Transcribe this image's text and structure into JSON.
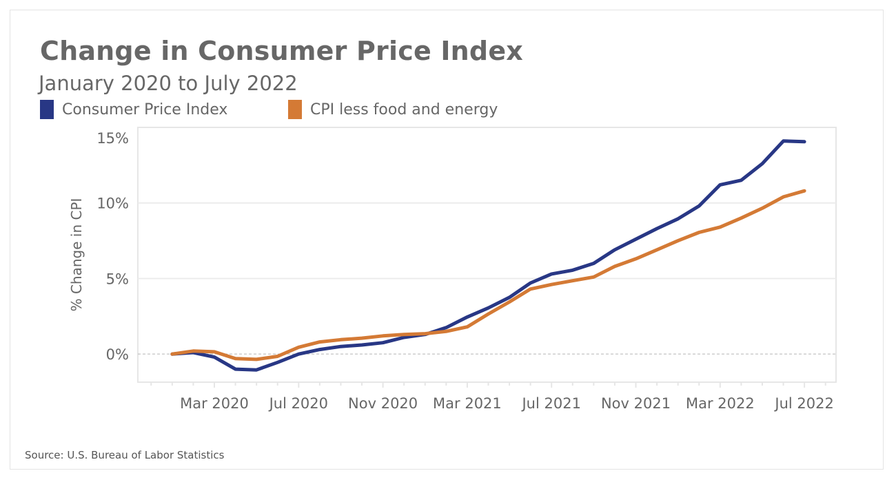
{
  "chart_data": {
    "type": "line",
    "title": "Change in Consumer Price Index",
    "subtitle": "January 2020 to July 2022",
    "ylabel": "% Change in CPI",
    "xlabel": "",
    "ylim": [
      -1.86,
      15
    ],
    "yticks": [
      0,
      5,
      10,
      15
    ],
    "ytick_labels": [
      "0%",
      "5%",
      "10%",
      "15%"
    ],
    "x": [
      "Jan 2020",
      "Feb 2020",
      "Mar 2020",
      "Apr 2020",
      "May 2020",
      "Jun 2020",
      "Jul 2020",
      "Aug 2020",
      "Sep 2020",
      "Oct 2020",
      "Nov 2020",
      "Dec 2020",
      "Jan 2021",
      "Feb 2021",
      "Mar 2021",
      "Apr 2021",
      "May 2021",
      "Jun 2021",
      "Jul 2021",
      "Aug 2021",
      "Sep 2021",
      "Oct 2021",
      "Nov 2021",
      "Dec 2021",
      "Jan 2022",
      "Feb 2022",
      "Mar 2022",
      "Apr 2022",
      "May 2022",
      "Jun 2022",
      "Jul 2022"
    ],
    "xticks": [
      "Mar 2020",
      "Jul 2020",
      "Nov 2020",
      "Mar 2021",
      "Jul 2021",
      "Nov 2021",
      "Mar 2022",
      "Jul 2022"
    ],
    "grid": "horizontal",
    "zero_line": "dashed",
    "legend_position": "top-left",
    "series": [
      {
        "name": "Consumer Price Index",
        "color": "#283785",
        "values": [
          0,
          0.1,
          -0.2,
          -1.0,
          -1.05,
          -0.55,
          0,
          0.3,
          0.5,
          0.6,
          0.75,
          1.1,
          1.3,
          1.75,
          2.45,
          3.05,
          3.75,
          4.7,
          5.3,
          5.55,
          6.0,
          6.9,
          7.6,
          8.3,
          8.95,
          9.8,
          11.2,
          11.5,
          12.6,
          14.1,
          14.05
        ]
      },
      {
        "name": "CPI less food and energy",
        "color": "#d47a35",
        "values": [
          0,
          0.2,
          0.15,
          -0.3,
          -0.35,
          -0.15,
          0.45,
          0.8,
          0.95,
          1.05,
          1.2,
          1.3,
          1.35,
          1.5,
          1.8,
          2.65,
          3.45,
          4.3,
          4.6,
          4.85,
          5.1,
          5.8,
          6.3,
          6.9,
          7.5,
          8.05,
          8.4,
          9.0,
          9.65,
          10.4,
          10.8
        ]
      }
    ]
  },
  "source": "Source: U.S. Bureau of Labor Statistics"
}
